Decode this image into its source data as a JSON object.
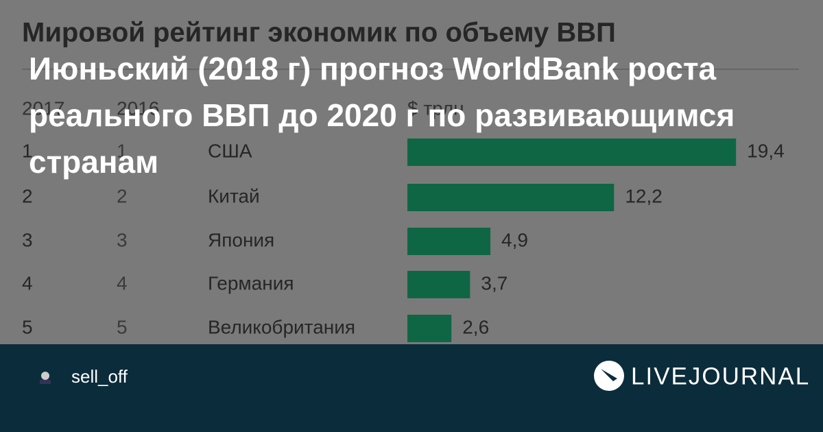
{
  "chart_data": {
    "type": "bar",
    "title": "Мировой рейтинг экономик по объему ВВП",
    "column_headers": [
      "2017",
      "2016",
      "$ трлн"
    ],
    "rank_2017": [
      1,
      2,
      3,
      4,
      5
    ],
    "rank_2016": [
      1,
      2,
      3,
      4,
      5
    ],
    "categories": [
      "США",
      "Китай",
      "Япония",
      "Германия",
      "Великобритания"
    ],
    "values": [
      19.4,
      12.2,
      4.9,
      3.7,
      2.6
    ],
    "value_labels": [
      "19,4",
      "12,2",
      "4,9",
      "3,7",
      "2,6"
    ],
    "color": "#0f6644"
  },
  "overlay_title": "Июньский (2018 г) прогноз WorldBank роста реального ВВП до 2020 г по развивающимся странам",
  "footer": {
    "username": "sell_off",
    "brand": "LIVEJOURNAL"
  }
}
